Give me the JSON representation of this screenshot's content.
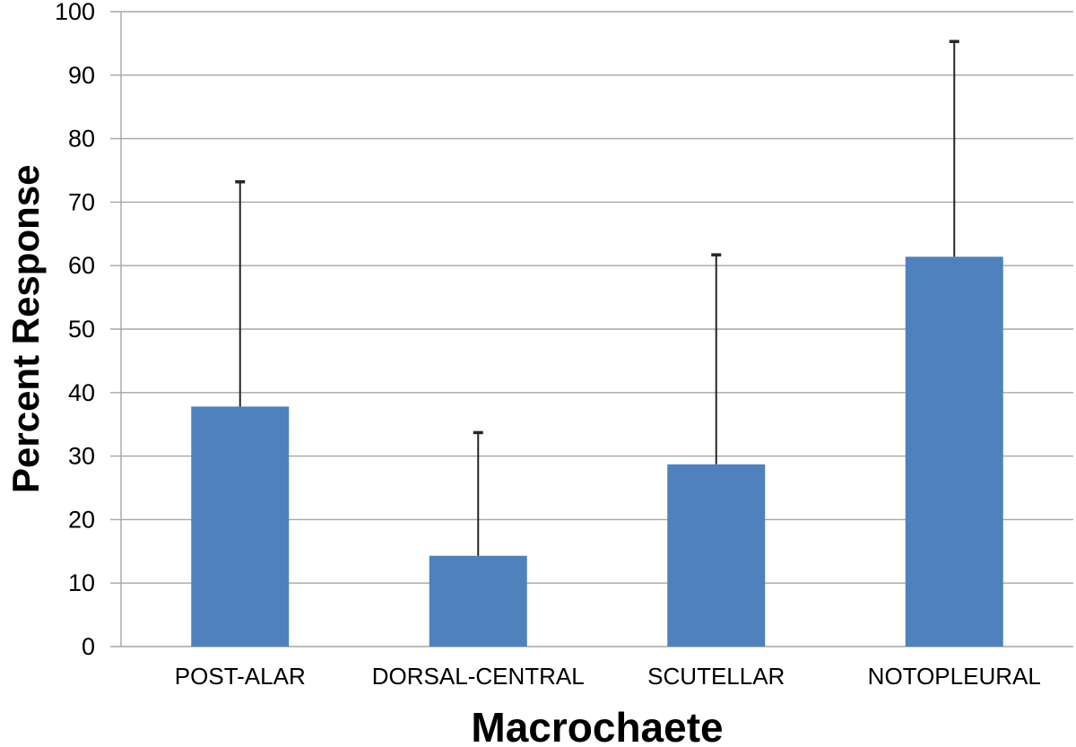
{
  "chart_data": {
    "type": "bar",
    "title": "",
    "xlabel": "Macrochaete",
    "ylabel": "Percent Response",
    "categories": [
      "POST-ALAR",
      "DORSAL-CENTRAL",
      "SCUTELLAR",
      "NOTOPLEURAL"
    ],
    "values": [
      37.8,
      14.3,
      28.7,
      61.4
    ],
    "error_upper": [
      35.4,
      19.4,
      33.0,
      33.9
    ],
    "error_bar_tops": [
      73.2,
      33.7,
      61.7,
      95.3
    ],
    "ylim": [
      0,
      100
    ],
    "yticks": [
      0,
      10,
      20,
      30,
      40,
      50,
      60,
      70,
      80,
      90,
      100
    ],
    "grid": true,
    "legend": "none",
    "colors": {
      "bar": "#4F81BD",
      "error_bar": "#262626",
      "gridline": "#A6A6A6",
      "text": "#000000",
      "background": "#FFFFFF"
    }
  }
}
